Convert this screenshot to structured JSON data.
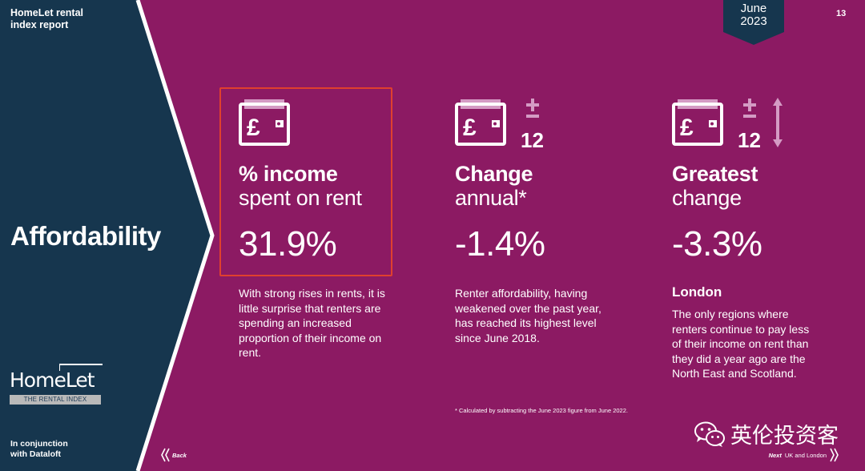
{
  "colors": {
    "background": "#8c1a63",
    "sidebar": "#16364e",
    "sidebar_edge": "#ffffff",
    "highlight": "#e0402e",
    "icon_accent": "#d49bc4",
    "date_badge": "#16364e"
  },
  "header": {
    "report_title": "HomeLet rental\nindex report",
    "date": "June\n2023",
    "page_number": "13"
  },
  "sidebar": {
    "section_title": "Affordability",
    "logo_text": "HomeLet",
    "logo_subtitle": "THE RENTAL INDEX",
    "partner_text": "In conjunction\nwith Dataloft"
  },
  "metrics": [
    {
      "icon": "wallet-pound-icon",
      "title": "% income",
      "subtitle": "spent on rent",
      "value": "31.9%",
      "description": "With strong rises in rents, it is little surprise that renters are spending an increased proportion of their income on rent."
    },
    {
      "icon": "wallet-pound-icon",
      "badge": "12",
      "title": "Change",
      "subtitle": "annual*",
      "value": "-1.4%",
      "description": "Renter affordability, having weakened over the past year, has reached its highest level since June 2018."
    },
    {
      "icon": "wallet-pound-icon",
      "badge": "12",
      "title": "Greatest",
      "subtitle": "change",
      "value": "-3.3%",
      "region": "London",
      "description": "The only regions where renters continue to pay less of their income on rent than they did a year ago are the North East and Scotland."
    }
  ],
  "footnote": "* Calculated by subtracting the June 2023 figure from June 2022.",
  "navigation": {
    "back_label": "Back",
    "next_label": "Next",
    "next_description": "UK and London"
  },
  "watermark": {
    "text": "英伦投资客",
    "icon": "wechat-icon"
  }
}
